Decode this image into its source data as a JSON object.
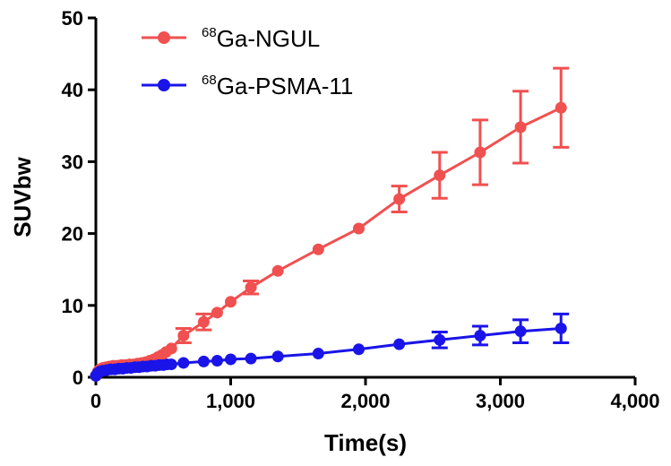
{
  "chart_data": {
    "type": "line",
    "xlabel": "Time(s)",
    "ylabel": "SUVbw",
    "xlim": [
      0,
      4000
    ],
    "ylim": [
      0,
      50
    ],
    "x_ticks": [
      "0",
      "1,000",
      "2,000",
      "3,000",
      "4,000"
    ],
    "y_ticks": [
      "0",
      "10",
      "20",
      "30",
      "40",
      "50"
    ],
    "x_tick_values": [
      0,
      1000,
      2000,
      3000,
      4000
    ],
    "y_tick_values": [
      0,
      10,
      20,
      30,
      40,
      50
    ],
    "grid": false,
    "legend_position": "top-left",
    "series": [
      {
        "name_sup": "68",
        "name": "Ga-NGUL",
        "color": "#f05050",
        "points": [
          {
            "x": 0,
            "y": 0.2
          },
          {
            "x": 15,
            "y": 0.8
          },
          {
            "x": 30,
            "y": 1.1
          },
          {
            "x": 50,
            "y": 1.3
          },
          {
            "x": 75,
            "y": 1.4
          },
          {
            "x": 100,
            "y": 1.5
          },
          {
            "x": 130,
            "y": 1.6
          },
          {
            "x": 160,
            "y": 1.6
          },
          {
            "x": 190,
            "y": 1.7
          },
          {
            "x": 220,
            "y": 1.7
          },
          {
            "x": 250,
            "y": 1.8
          },
          {
            "x": 280,
            "y": 1.8
          },
          {
            "x": 310,
            "y": 1.9
          },
          {
            "x": 340,
            "y": 2.0
          },
          {
            "x": 370,
            "y": 2.1
          },
          {
            "x": 400,
            "y": 2.3
          },
          {
            "x": 430,
            "y": 2.5
          },
          {
            "x": 460,
            "y": 2.8
          },
          {
            "x": 490,
            "y": 3.1
          },
          {
            "x": 520,
            "y": 3.5
          },
          {
            "x": 560,
            "y": 4.0
          },
          {
            "x": 650,
            "y": 5.8,
            "err": 1.0
          },
          {
            "x": 800,
            "y": 7.7,
            "err": 1.1
          },
          {
            "x": 900,
            "y": 9.0
          },
          {
            "x": 1000,
            "y": 10.5
          },
          {
            "x": 1150,
            "y": 12.5,
            "err": 0.9
          },
          {
            "x": 1350,
            "y": 14.8
          },
          {
            "x": 1650,
            "y": 17.8
          },
          {
            "x": 1950,
            "y": 20.7
          },
          {
            "x": 2250,
            "y": 24.8,
            "err": 1.8
          },
          {
            "x": 2550,
            "y": 28.1,
            "err": 3.2
          },
          {
            "x": 2850,
            "y": 31.3,
            "err": 4.5
          },
          {
            "x": 3150,
            "y": 34.8,
            "err": 5.0
          },
          {
            "x": 3450,
            "y": 37.5,
            "err": 5.5
          }
        ]
      },
      {
        "name_sup": "68",
        "name": "Ga-PSMA-11",
        "color": "#1a14e8",
        "points": [
          {
            "x": 0,
            "y": 0.2
          },
          {
            "x": 15,
            "y": 0.6
          },
          {
            "x": 30,
            "y": 0.8
          },
          {
            "x": 50,
            "y": 0.9
          },
          {
            "x": 80,
            "y": 1.0
          },
          {
            "x": 110,
            "y": 1.1
          },
          {
            "x": 140,
            "y": 1.1
          },
          {
            "x": 170,
            "y": 1.2
          },
          {
            "x": 200,
            "y": 1.2
          },
          {
            "x": 230,
            "y": 1.3
          },
          {
            "x": 260,
            "y": 1.3
          },
          {
            "x": 290,
            "y": 1.4
          },
          {
            "x": 320,
            "y": 1.4
          },
          {
            "x": 350,
            "y": 1.5
          },
          {
            "x": 380,
            "y": 1.5
          },
          {
            "x": 410,
            "y": 1.6
          },
          {
            "x": 440,
            "y": 1.6
          },
          {
            "x": 470,
            "y": 1.7
          },
          {
            "x": 500,
            "y": 1.7
          },
          {
            "x": 530,
            "y": 1.8
          },
          {
            "x": 560,
            "y": 1.8
          },
          {
            "x": 650,
            "y": 2.0
          },
          {
            "x": 800,
            "y": 2.2
          },
          {
            "x": 900,
            "y": 2.3
          },
          {
            "x": 1000,
            "y": 2.5
          },
          {
            "x": 1150,
            "y": 2.6
          },
          {
            "x": 1350,
            "y": 2.9
          },
          {
            "x": 1650,
            "y": 3.3
          },
          {
            "x": 1950,
            "y": 3.9
          },
          {
            "x": 2250,
            "y": 4.6
          },
          {
            "x": 2550,
            "y": 5.2,
            "err": 1.1
          },
          {
            "x": 2850,
            "y": 5.8,
            "err": 1.3
          },
          {
            "x": 3150,
            "y": 6.4,
            "err": 1.6
          },
          {
            "x": 3450,
            "y": 6.8,
            "err": 2.0
          }
        ]
      }
    ]
  }
}
